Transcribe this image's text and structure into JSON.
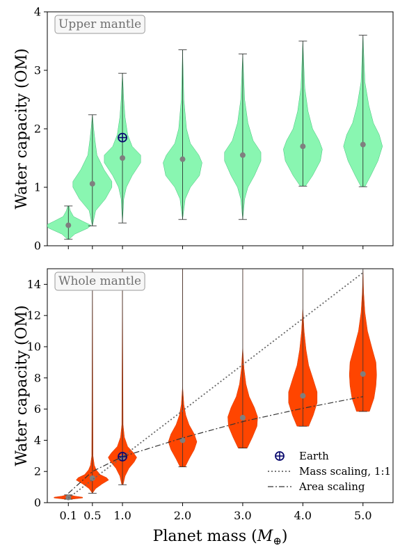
{
  "chart_data": [
    {
      "type": "violin",
      "panel_label": "Upper mantle",
      "ylabel": "Water capacity (OM)",
      "xlabel": "",
      "x": [
        0.1,
        0.5,
        1.0,
        2.0,
        3.0,
        4.0,
        5.0
      ],
      "xlim": [
        -0.25,
        5.5
      ],
      "ylim": [
        0,
        4
      ],
      "yticks": [
        0,
        1,
        2,
        3,
        4
      ],
      "ytick_labels": [
        "0",
        "1",
        "2",
        "3",
        "4"
      ],
      "fill_color": "#7cf5a8",
      "median_color": "#7f7f7f",
      "violins": [
        {
          "x": 0.1,
          "min": 0.11,
          "max": 0.68,
          "median": 0.35,
          "profile": [
            [
              0.11,
              0.01
            ],
            [
              0.2,
              0.1
            ],
            [
              0.3,
              0.3
            ],
            [
              0.35,
              0.35
            ],
            [
              0.42,
              0.22
            ],
            [
              0.5,
              0.08
            ],
            [
              0.6,
              0.03
            ],
            [
              0.68,
              0.01
            ]
          ]
        },
        {
          "x": 0.5,
          "min": 0.34,
          "max": 2.24,
          "median": 1.06,
          "profile": [
            [
              0.34,
              0.0
            ],
            [
              0.6,
              0.05
            ],
            [
              0.8,
              0.2
            ],
            [
              1.0,
              0.3
            ],
            [
              1.1,
              0.3
            ],
            [
              1.3,
              0.18
            ],
            [
              1.55,
              0.07
            ],
            [
              1.8,
              0.04
            ],
            [
              2.0,
              0.02
            ],
            [
              2.24,
              0.0
            ]
          ]
        },
        {
          "x": 1.0,
          "min": 0.39,
          "max": 2.95,
          "median": 1.5,
          "profile": [
            [
              0.39,
              0.0
            ],
            [
              0.8,
              0.02
            ],
            [
              1.0,
              0.06
            ],
            [
              1.2,
              0.15
            ],
            [
              1.42,
              0.28
            ],
            [
              1.55,
              0.28
            ],
            [
              1.7,
              0.15
            ],
            [
              1.9,
              0.08
            ],
            [
              2.2,
              0.04
            ],
            [
              2.5,
              0.02
            ],
            [
              2.95,
              0.0
            ]
          ]
        },
        {
          "x": 2.0,
          "min": 0.45,
          "max": 3.35,
          "median": 1.48,
          "profile": [
            [
              0.45,
              0.0
            ],
            [
              0.8,
              0.04
            ],
            [
              1.0,
              0.12
            ],
            [
              1.2,
              0.26
            ],
            [
              1.42,
              0.3
            ],
            [
              1.55,
              0.25
            ],
            [
              1.75,
              0.12
            ],
            [
              2.0,
              0.06
            ],
            [
              2.5,
              0.02
            ],
            [
              3.35,
              0.0
            ]
          ]
        },
        {
          "x": 3.0,
          "min": 0.45,
          "max": 3.28,
          "median": 1.55,
          "profile": [
            [
              0.45,
              0.0
            ],
            [
              0.8,
              0.03
            ],
            [
              1.0,
              0.08
            ],
            [
              1.2,
              0.18
            ],
            [
              1.45,
              0.28
            ],
            [
              1.6,
              0.28
            ],
            [
              1.8,
              0.16
            ],
            [
              2.1,
              0.08
            ],
            [
              2.5,
              0.03
            ],
            [
              3.28,
              0.0
            ]
          ]
        },
        {
          "x": 4.0,
          "min": 1.02,
          "max": 3.5,
          "median": 1.7,
          "profile": [
            [
              1.02,
              0.04
            ],
            [
              1.2,
              0.15
            ],
            [
              1.45,
              0.27
            ],
            [
              1.65,
              0.3
            ],
            [
              1.8,
              0.25
            ],
            [
              2.0,
              0.15
            ],
            [
              2.3,
              0.08
            ],
            [
              2.7,
              0.03
            ],
            [
              3.5,
              0.0
            ]
          ]
        },
        {
          "x": 5.0,
          "min": 1.01,
          "max": 3.6,
          "median": 1.73,
          "profile": [
            [
              1.01,
              0.03
            ],
            [
              1.2,
              0.12
            ],
            [
              1.45,
              0.23
            ],
            [
              1.7,
              0.3
            ],
            [
              1.9,
              0.25
            ],
            [
              2.1,
              0.16
            ],
            [
              2.4,
              0.09
            ],
            [
              2.8,
              0.03
            ],
            [
              3.6,
              0.0
            ]
          ]
        }
      ],
      "earth": {
        "x": 1.0,
        "y": 1.85
      }
    },
    {
      "type": "violin",
      "panel_label": "Whole mantle",
      "ylabel": "Water capacity (OM)",
      "xlabel": "Planet mass (M⊕)",
      "x": [
        0.1,
        0.5,
        1.0,
        2.0,
        3.0,
        4.0,
        5.0
      ],
      "xticks": [
        0.1,
        0.5,
        1.0,
        2.0,
        3.0,
        4.0,
        5.0
      ],
      "xtick_labels": [
        "0.1",
        "0.5",
        "1.0",
        "2.0",
        "3.0",
        "4.0",
        "5.0"
      ],
      "xlim": [
        -0.25,
        5.5
      ],
      "ylim": [
        0,
        15
      ],
      "yticks": [
        0,
        2,
        4,
        6,
        8,
        10,
        12,
        14
      ],
      "ytick_labels": [
        "0",
        "2",
        "4",
        "6",
        "8",
        "10",
        "12",
        "14"
      ],
      "fill_color": "#ff4500",
      "median_color": "#7f7f7f",
      "violins": [
        {
          "x": 0.1,
          "min": 0.22,
          "max": 0.5,
          "median": 0.33,
          "profile": [
            [
              0.22,
              0.05
            ],
            [
              0.3,
              0.22
            ],
            [
              0.35,
              0.22
            ],
            [
              0.42,
              0.1
            ],
            [
              0.5,
              0.02
            ]
          ]
        },
        {
          "x": 0.5,
          "min": 0.6,
          "max": 15,
          "median": 1.57,
          "profile": [
            [
              0.6,
              0.0
            ],
            [
              0.9,
              0.05
            ],
            [
              1.2,
              0.15
            ],
            [
              1.45,
              0.25
            ],
            [
              1.6,
              0.22
            ],
            [
              1.8,
              0.12
            ],
            [
              2.1,
              0.06
            ],
            [
              2.4,
              0.03
            ],
            [
              3.0,
              0.01
            ],
            [
              15,
              0.0
            ]
          ]
        },
        {
          "x": 1.0,
          "min": 1.15,
          "max": 15,
          "median": 2.9,
          "profile": [
            [
              1.15,
              0.01
            ],
            [
              1.7,
              0.04
            ],
            [
              2.2,
              0.1
            ],
            [
              2.6,
              0.18
            ],
            [
              2.9,
              0.22
            ],
            [
              3.2,
              0.17
            ],
            [
              3.6,
              0.08
            ],
            [
              4.2,
              0.03
            ],
            [
              5.0,
              0.01
            ],
            [
              15,
              0.0
            ]
          ]
        },
        {
          "x": 2.0,
          "min": 2.3,
          "max": 15,
          "median": 4.0,
          "profile": [
            [
              2.3,
              0.04
            ],
            [
              2.8,
              0.1
            ],
            [
              3.4,
              0.18
            ],
            [
              3.9,
              0.22
            ],
            [
              4.4,
              0.18
            ],
            [
              5.0,
              0.1
            ],
            [
              5.6,
              0.05
            ],
            [
              6.3,
              0.02
            ],
            [
              7.5,
              0.0
            ],
            [
              15,
              0.0
            ]
          ]
        },
        {
          "x": 3.0,
          "min": 3.5,
          "max": 15,
          "median": 5.45,
          "profile": [
            [
              3.5,
              0.07
            ],
            [
              4.2,
              0.15
            ],
            [
              4.9,
              0.22
            ],
            [
              5.5,
              0.23
            ],
            [
              6.1,
              0.18
            ],
            [
              6.8,
              0.1
            ],
            [
              7.6,
              0.05
            ],
            [
              8.6,
              0.02
            ],
            [
              10,
              0.0
            ],
            [
              15,
              0.0
            ]
          ]
        },
        {
          "x": 4.0,
          "min": 4.9,
          "max": 15,
          "median": 6.85,
          "profile": [
            [
              4.9,
              0.09
            ],
            [
              5.6,
              0.16
            ],
            [
              6.4,
              0.22
            ],
            [
              7.1,
              0.22
            ],
            [
              7.9,
              0.16
            ],
            [
              8.8,
              0.09
            ],
            [
              9.8,
              0.05
            ],
            [
              11,
              0.02
            ],
            [
              12.5,
              0.0
            ],
            [
              15,
              0.0
            ]
          ]
        },
        {
          "x": 5.0,
          "min": 5.85,
          "max": 15,
          "median": 8.25,
          "profile": [
            [
              5.85,
              0.1
            ],
            [
              6.7,
              0.17
            ],
            [
              7.5,
              0.2
            ],
            [
              8.2,
              0.21
            ],
            [
              9.0,
              0.2
            ],
            [
              9.9,
              0.14
            ],
            [
              11,
              0.07
            ],
            [
              12.2,
              0.03
            ],
            [
              13.5,
              0.01
            ],
            [
              15,
              0.0
            ]
          ]
        }
      ],
      "earth": {
        "x": 1.0,
        "y": 2.95
      },
      "mass_scaling": {
        "label": "Mass scaling, 1:1",
        "x": [
          0.1,
          5.0
        ],
        "y": [
          0.29,
          14.75
        ]
      },
      "area_scaling": {
        "label": "Area scaling",
        "x": [
          0.1,
          0.5,
          1.0,
          2.0,
          3.0,
          4.0,
          5.0
        ],
        "y": [
          0.6,
          2.0,
          2.95,
          4.15,
          5.2,
          6.05,
          6.8
        ]
      },
      "legend": {
        "position": "lower-right",
        "entries": [
          "Earth",
          "Mass scaling, 1:1",
          "Area scaling"
        ]
      }
    }
  ]
}
